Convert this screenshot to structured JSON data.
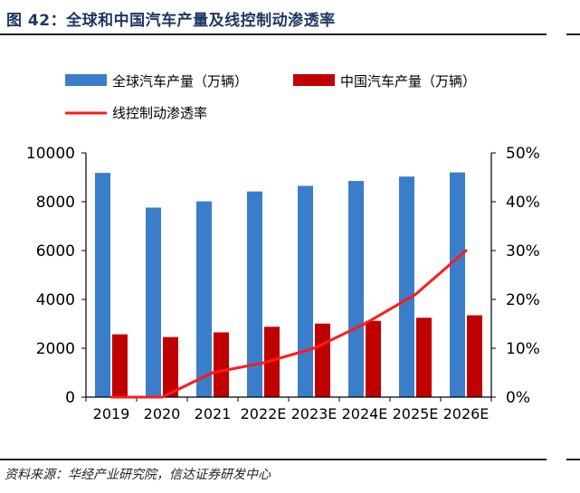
{
  "figure": {
    "title": "图 42：全球和中国汽车产量及线控制动渗透率",
    "source": "资料来源：华经产业研究院，信达证券研发中心"
  },
  "colors": {
    "global_bar": "#3a7dc8",
    "china_bar": "#c00000",
    "line": "#ff1a1a",
    "axis": "#000000",
    "title": "#1f3864"
  },
  "chart_data": {
    "type": "bar",
    "categories": [
      "2019",
      "2020",
      "2021",
      "2022E",
      "2023E",
      "2024E",
      "2025E",
      "2026E"
    ],
    "series": [
      {
        "name": "全球汽车产量（万辆）",
        "type": "bar",
        "axis": "left",
        "values": [
          9180,
          7760,
          8015,
          8420,
          8650,
          8850,
          9030,
          9200
        ]
      },
      {
        "name": "中国汽车产量（万辆）",
        "type": "bar",
        "axis": "left",
        "values": [
          2570,
          2460,
          2650,
          2880,
          3010,
          3120,
          3250,
          3350
        ]
      },
      {
        "name": "线控制动渗透率",
        "type": "line",
        "axis": "right",
        "values": [
          0.0,
          0.0,
          5.0,
          7.0,
          10.0,
          15.0,
          21.0,
          30.0
        ]
      }
    ],
    "y_left": {
      "min": 0,
      "max": 10000,
      "ticks": [
        "0",
        "2000",
        "4000",
        "6000",
        "8000",
        "10000"
      ]
    },
    "y_right": {
      "min": 0,
      "max": 50,
      "ticks": [
        "0%",
        "10%",
        "20%",
        "30%",
        "40%",
        "50%"
      ]
    },
    "legend": [
      "全球汽车产量（万辆）",
      "中国汽车产量（万辆）",
      "线控制动渗透率"
    ],
    "grid": false
  }
}
